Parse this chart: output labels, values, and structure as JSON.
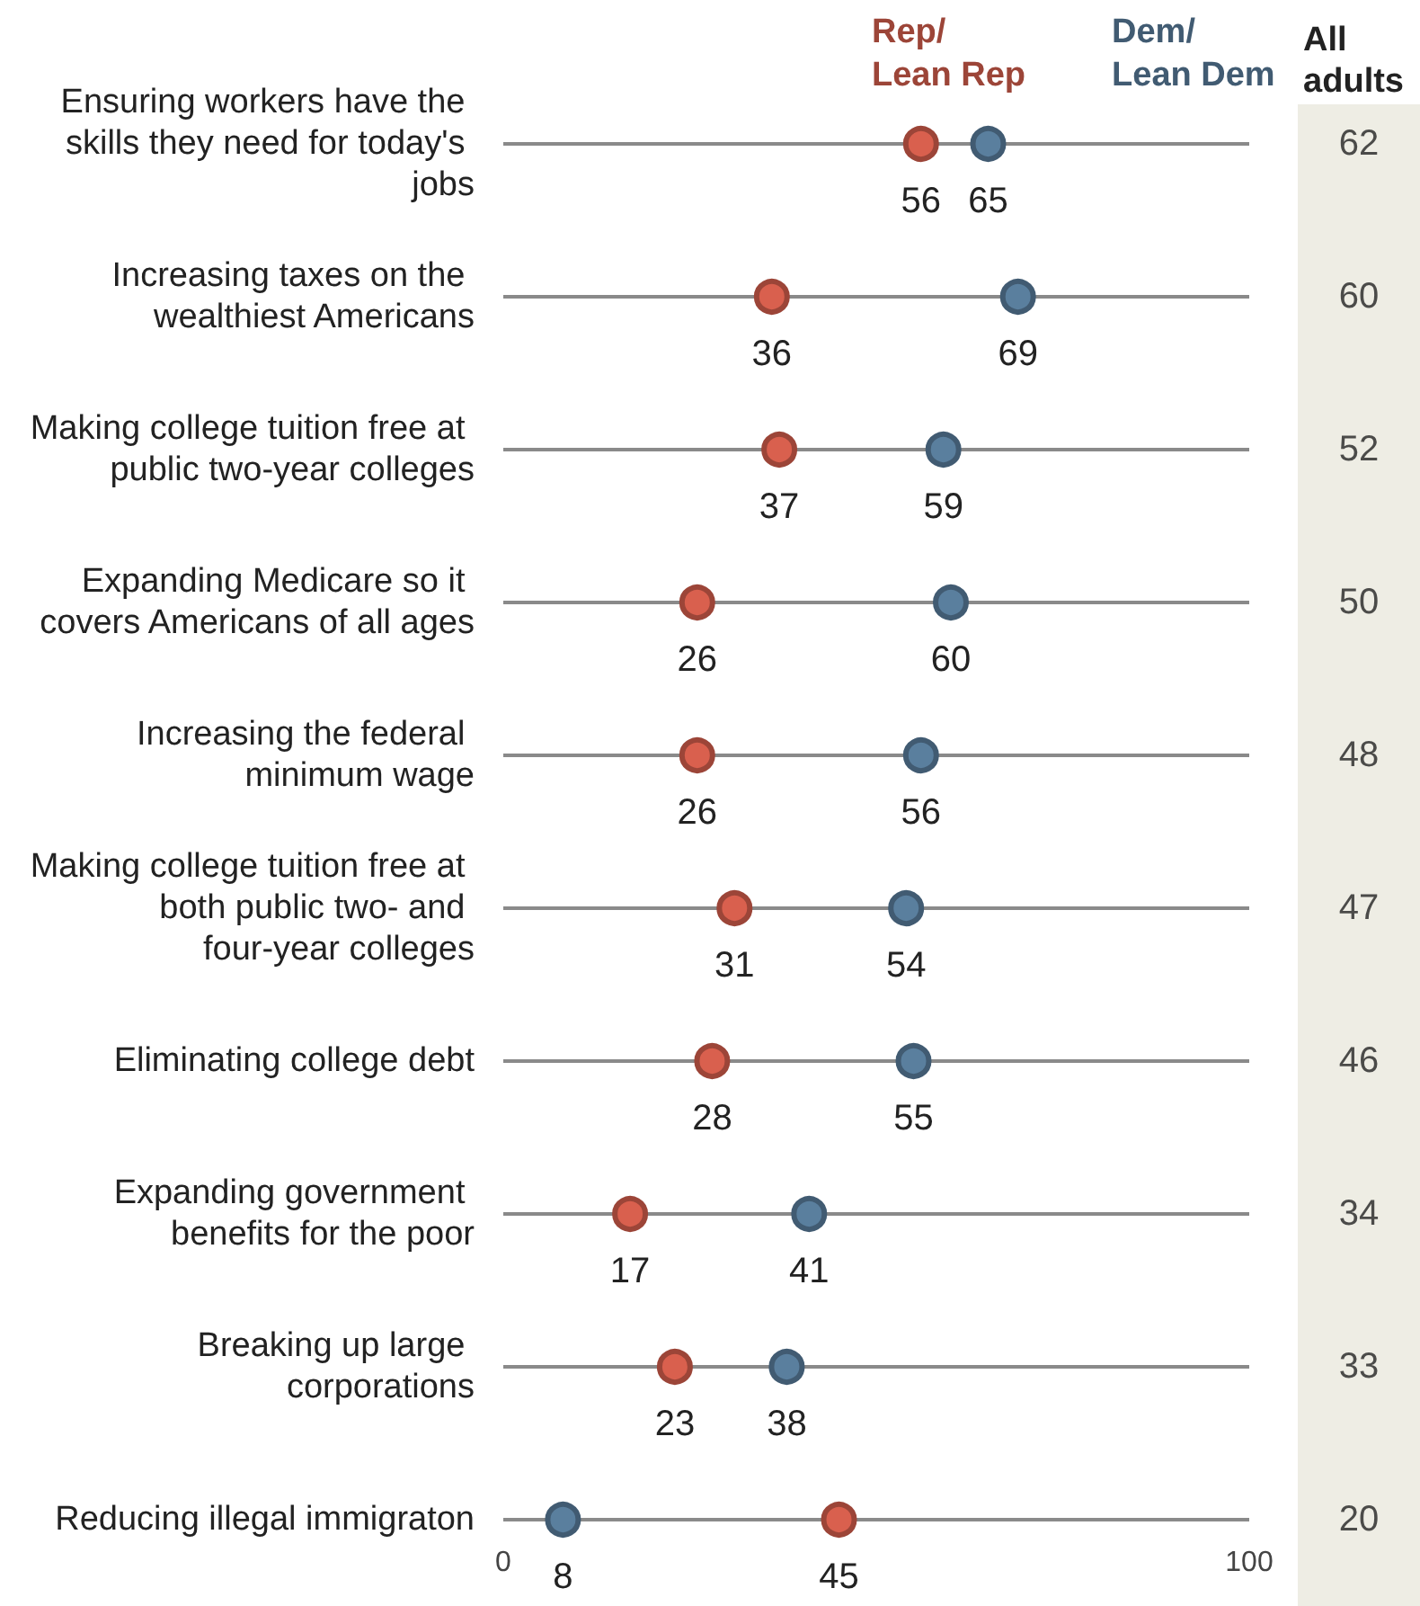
{
  "chart_data": [
    {
      "type": "scatter",
      "orientation": "horizontal",
      "categories": [
        "Ensuring workers have the skills they need for today's jobs",
        "Increasing taxes on the wealthiest Americans",
        "Making college tuition free at public two-year colleges",
        "Expanding Medicare so it covers Americans of all ages",
        "Increasing the federal minimum wage",
        "Making college tuition free at both public two- and four-year colleges",
        "Eliminating college debt",
        "Expanding government benefits for the poor",
        "Breaking up large corporations",
        "Reducing illegal immigraton"
      ],
      "series": [
        {
          "name": "Rep/ Lean Rep",
          "color": "#d9604e",
          "values": [
            56,
            36,
            37,
            26,
            26,
            31,
            28,
            17,
            23,
            45
          ]
        },
        {
          "name": "Dem/ Lean Dem",
          "color": "#5a7f9e",
          "values": [
            65,
            69,
            59,
            60,
            56,
            54,
            55,
            41,
            38,
            8
          ]
        }
      ],
      "xlim": [
        0,
        100
      ],
      "xticks": [
        0,
        100
      ],
      "grid": "y",
      "marker": "circle",
      "data_labels": true,
      "legend": "top"
    },
    {
      "type": "other",
      "title": "All adults",
      "categories": [
        null,
        null,
        null,
        null,
        null,
        null,
        null,
        null,
        null,
        null
      ],
      "values": [
        62,
        60,
        52,
        50,
        48,
        47,
        46,
        34,
        33,
        20
      ],
      "color": "#222222",
      "data_labels": true
    }
  ]
}
